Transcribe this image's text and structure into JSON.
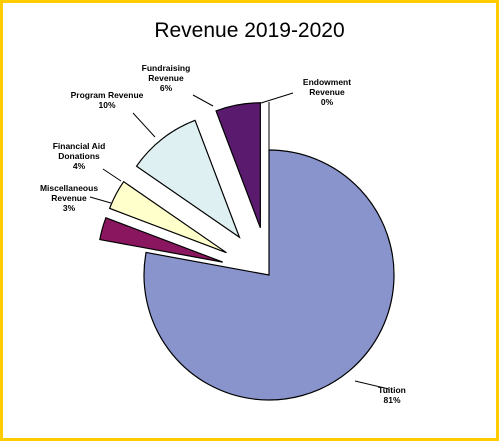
{
  "chart_data": {
    "type": "pie",
    "title": "Revenue 2019-2020",
    "slices": [
      {
        "label_lines": [
          "Tuition",
          "81%"
        ],
        "value": 81,
        "color": "#8a94cc"
      },
      {
        "label_lines": [
          "Miscellaneous",
          "Revenue",
          "3%"
        ],
        "value": 3,
        "color": "#8b1660"
      },
      {
        "label_lines": [
          "Financial Aid",
          "Donations",
          "4%"
        ],
        "value": 4,
        "color": "#ffffcc"
      },
      {
        "label_lines": [
          "Program Revenue",
          "10%"
        ],
        "value": 10,
        "color": "#dff0f3"
      },
      {
        "label_lines": [
          "Fundraising",
          "Revenue",
          "6%"
        ],
        "value": 6,
        "color": "#5a1a6e"
      },
      {
        "label_lines": [
          "Endowment",
          "Revenue",
          "0%"
        ],
        "value": 0,
        "color": "#ffffff"
      }
    ],
    "legend": "none",
    "exploded": true
  }
}
